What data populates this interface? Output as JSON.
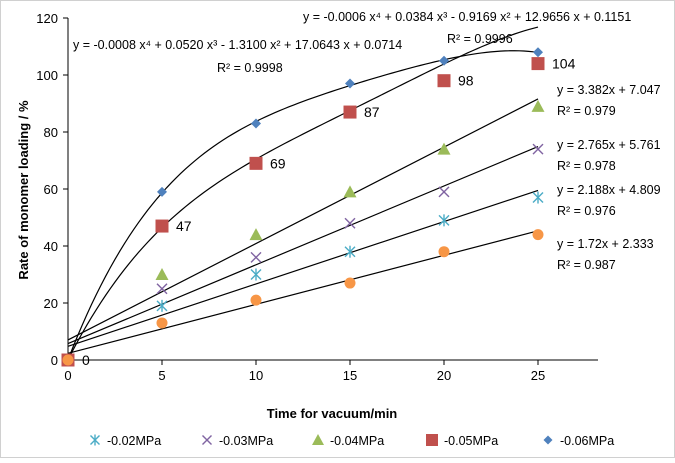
{
  "chart_data": {
    "type": "scatter",
    "xlabel": "Time for vacuum/min",
    "ylabel": "Rate of monomer loading / %",
    "xlim": [
      0,
      25
    ],
    "ylim": [
      0,
      120
    ],
    "x_ticks": [
      "0",
      "5",
      "10",
      "15",
      "20",
      "25"
    ],
    "y_ticks": [
      "0",
      "20",
      "40",
      "60",
      "80",
      "100",
      "120"
    ],
    "grid": false,
    "legend_position": "bottom",
    "x": [
      0,
      5,
      10,
      15,
      20,
      25
    ],
    "series": [
      {
        "name": "-0.02MPa",
        "marker": "asterisk",
        "color": "#4bacc6",
        "values": [
          0,
          19,
          30,
          38,
          49,
          57
        ],
        "fit": {
          "kind": "linear",
          "slope": 2.188,
          "intercept": 4.809
        },
        "equation": "y = 2.188x + 4.809",
        "r2": "R² = 0.976"
      },
      {
        "name": "-0.03MPa",
        "marker": "x",
        "color": "#8064a2",
        "values": [
          0,
          25,
          36,
          48,
          59,
          74
        ],
        "fit": {
          "kind": "linear",
          "slope": 2.765,
          "intercept": 5.761
        },
        "equation": "y = 2.765x + 5.761",
        "r2": "R² = 0.978"
      },
      {
        "name": "-0.04MPa",
        "marker": "triangle",
        "color": "#9bbb59",
        "values": [
          0,
          30,
          44,
          59,
          74,
          89
        ],
        "fit": {
          "kind": "linear",
          "slope": 3.382,
          "intercept": 7.047
        },
        "equation": "y = 3.382x + 7.047",
        "r2": "R² = 0.979"
      },
      {
        "name": "-0.05MPa",
        "marker": "square",
        "color": "#c0504d",
        "values": [
          0,
          47,
          69,
          87,
          98,
          104
        ],
        "data_labels": [
          "0",
          "47",
          "69",
          "87",
          "98",
          "104"
        ],
        "fit": {
          "kind": "poly",
          "coeffs": [
            0.0714,
            17.0643,
            -1.31,
            0.052,
            -0.0008
          ]
        },
        "equation": "y = -0.0008 x⁴ + 0.0520 x³ - 1.3100 x² + 17.0643 x + 0.0714",
        "r2": "R² = 0.9998"
      },
      {
        "name": "-0.06MPa",
        "marker": "diamond",
        "color": "#4f81bd",
        "values": [
          0,
          59,
          83,
          97,
          105,
          108
        ],
        "fit": {
          "kind": "poly",
          "coeffs": [
            0.1151,
            12.9656,
            -0.9169,
            0.0384,
            -0.0006
          ]
        },
        "equation": "y = -0.0006 x⁴ + 0.0384 x³ - 0.9169 x² + 12.9656 x + 0.1151",
        "r2": "R² = 0.9996"
      },
      {
        "name": "",
        "marker": "circle",
        "color": "#f79646",
        "values": [
          0,
          13,
          21,
          27,
          38,
          44
        ],
        "fit": {
          "kind": "linear",
          "slope": 1.72,
          "intercept": 2.333
        },
        "equation": "y = 1.72x + 2.333",
        "r2": "R² = 0.987"
      }
    ]
  }
}
